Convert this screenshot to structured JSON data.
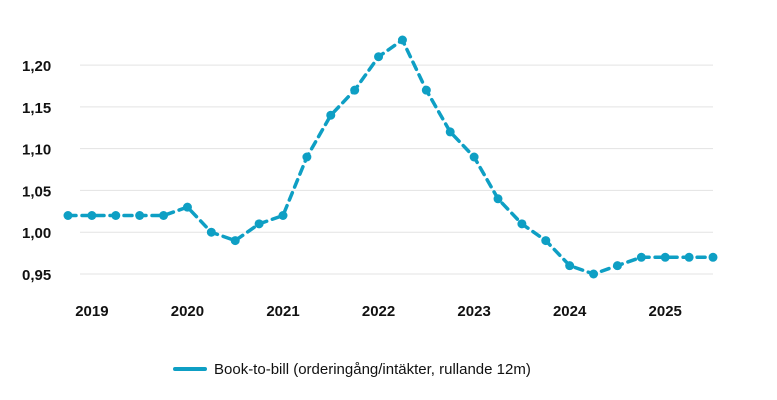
{
  "chart_data": {
    "type": "line",
    "title": "",
    "xlabel": "",
    "ylabel": "",
    "x_ticks": [
      "2019",
      "2020",
      "2021",
      "2022",
      "2023",
      "2024",
      "2025"
    ],
    "y_ticks": [
      "0,95",
      "1,00",
      "1,05",
      "1,10",
      "1,15",
      "1,20"
    ],
    "y_tick_values": [
      0.95,
      1.0,
      1.05,
      1.1,
      1.15,
      1.2
    ],
    "ylim": [
      0.95,
      1.23
    ],
    "xlim": [
      2018.92,
      2025.58
    ],
    "grid": true,
    "legend_position": "bottom-center",
    "series": [
      {
        "name": "Book-to-bill (orderingång/intäkter, rullande 12m)",
        "color": "#0e9fc4",
        "style": "dashed-with-markers",
        "x": [
          2018.75,
          2019.0,
          2019.25,
          2019.5,
          2019.75,
          2020.0,
          2020.25,
          2020.5,
          2020.75,
          2021.0,
          2021.25,
          2021.5,
          2021.75,
          2022.0,
          2022.25,
          2022.5,
          2022.75,
          2023.0,
          2023.25,
          2023.5,
          2023.75,
          2024.0,
          2024.25,
          2024.5,
          2024.75,
          2025.0,
          2025.25,
          2025.5
        ],
        "values": [
          1.02,
          1.02,
          1.02,
          1.02,
          1.02,
          1.03,
          1.0,
          0.99,
          1.01,
          1.02,
          1.09,
          1.14,
          1.17,
          1.21,
          1.23,
          1.17,
          1.12,
          1.09,
          1.04,
          1.01,
          0.99,
          0.96,
          0.95,
          0.96,
          0.97,
          0.97,
          0.97,
          0.97
        ]
      }
    ]
  }
}
